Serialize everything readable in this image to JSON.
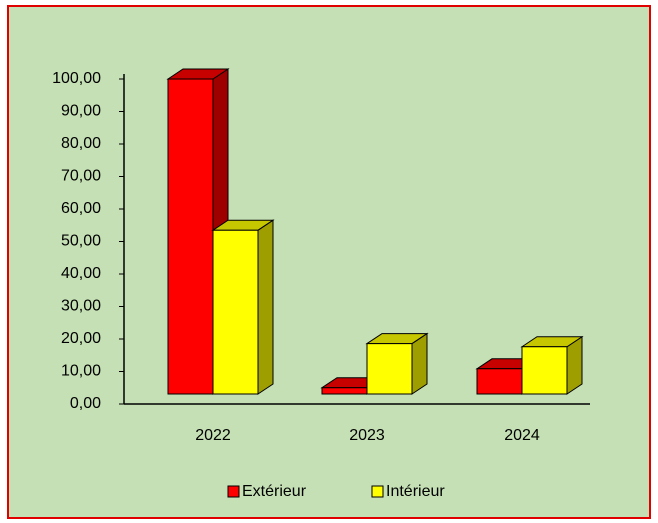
{
  "chart_data": {
    "type": "bar3d",
    "categories": [
      "2022",
      "2023",
      "2024"
    ],
    "series": [
      {
        "name": "Extérieur",
        "color": "#ff0000",
        "values": [
          100,
          2,
          8
        ]
      },
      {
        "name": "Intérieur",
        "color": "#ffff00",
        "values": [
          52,
          16,
          15
        ]
      }
    ],
    "ylim": [
      0,
      100
    ],
    "yticks": [
      {
        "value": 0,
        "label": "0,00"
      },
      {
        "value": 10,
        "label": "10,00"
      },
      {
        "value": 20,
        "label": "20,00"
      },
      {
        "value": 30,
        "label": "30,00"
      },
      {
        "value": 40,
        "label": "40,00"
      },
      {
        "value": 50,
        "label": "50,00"
      },
      {
        "value": 60,
        "label": "60,00"
      },
      {
        "value": 70,
        "label": "70,00"
      },
      {
        "value": 80,
        "label": "80,00"
      },
      {
        "value": 90,
        "label": "90,00"
      },
      {
        "value": 100,
        "label": "100,00"
      }
    ],
    "legend": "bottom"
  }
}
